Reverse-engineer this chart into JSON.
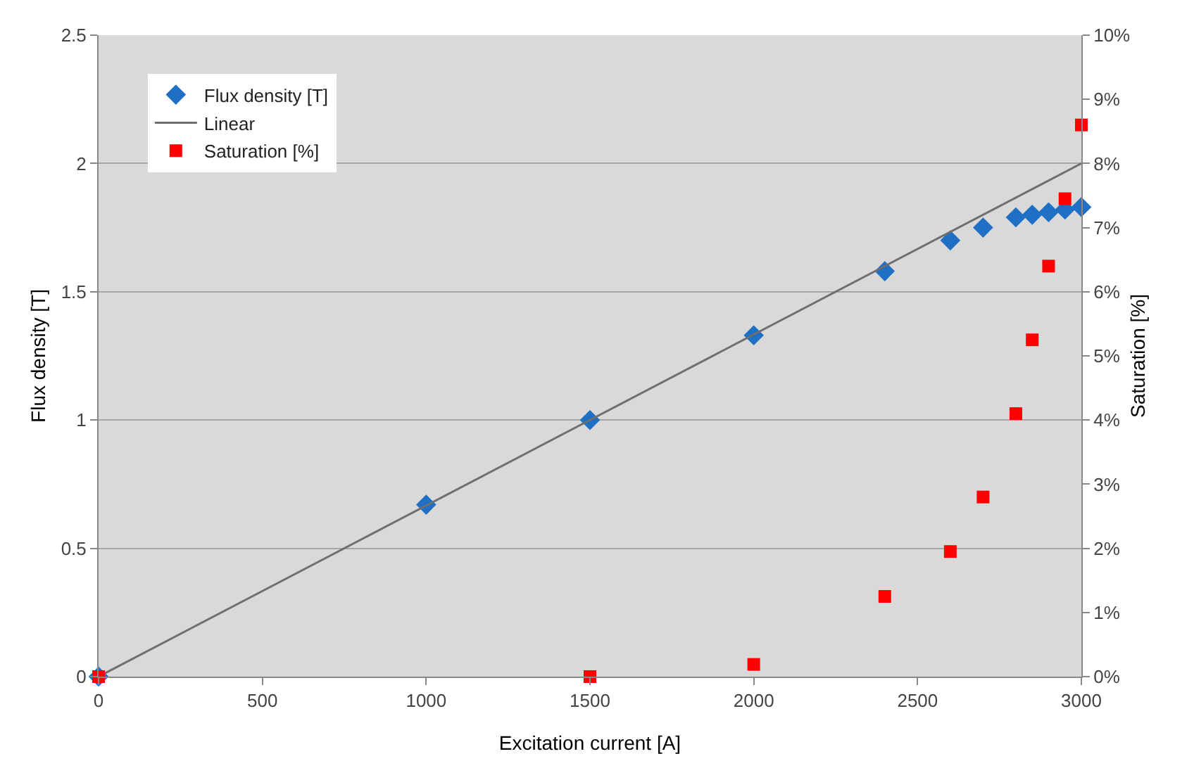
{
  "chart_data": {
    "type": "scatter",
    "xlabel": "Excitation current [A]",
    "ylabel": "Flux density [T]",
    "y2label": "Saturation [%]",
    "xlim": [
      0,
      3000
    ],
    "xticks": [
      0,
      500,
      1000,
      1500,
      2000,
      2500,
      3000
    ],
    "ylim": [
      0,
      2.5
    ],
    "yticks": [
      0,
      0.5,
      1,
      1.5,
      2,
      2.5
    ],
    "y2lim": [
      0,
      10
    ],
    "y2ticks": [
      {
        "value": 0,
        "label": "0%"
      },
      {
        "value": 1,
        "label": "1%"
      },
      {
        "value": 2,
        "label": "2%"
      },
      {
        "value": 3,
        "label": "3%"
      },
      {
        "value": 4,
        "label": "4%"
      },
      {
        "value": 5,
        "label": "5%"
      },
      {
        "value": 6,
        "label": "6%"
      },
      {
        "value": 7,
        "label": "7%"
      },
      {
        "value": 8,
        "label": "8%"
      },
      {
        "value": 9,
        "label": "9%"
      },
      {
        "value": 10,
        "label": "10%"
      }
    ],
    "grid": "y",
    "legend": "top left",
    "series": [
      {
        "name": "Flux density [T]",
        "type": "scatter",
        "marker": "diamond",
        "color": "#1f6fc5",
        "x": [
          0,
          1000,
          1500,
          2000,
          2400,
          2600,
          2700,
          2800,
          2850,
          2900,
          2950,
          3000
        ],
        "values": [
          0,
          0.67,
          1.0,
          1.33,
          1.58,
          1.7,
          1.75,
          1.79,
          1.8,
          1.81,
          1.82,
          1.83
        ]
      },
      {
        "name": "Linear",
        "type": "line",
        "marker": "none",
        "color": "#6e6e6e",
        "x": [
          0,
          3000
        ],
        "values": [
          0,
          2.0
        ]
      },
      {
        "name": "Saturation [%]",
        "type": "scatter",
        "marker": "square",
        "axis": "y2",
        "color": "#ff0000",
        "x": [
          0,
          1500,
          2000,
          2400,
          2600,
          2700,
          2800,
          2850,
          2900,
          2950,
          3000
        ],
        "values": [
          0,
          0,
          0.19,
          1.25,
          1.95,
          2.8,
          4.1,
          5.25,
          6.4,
          7.45,
          8.6
        ]
      }
    ]
  }
}
